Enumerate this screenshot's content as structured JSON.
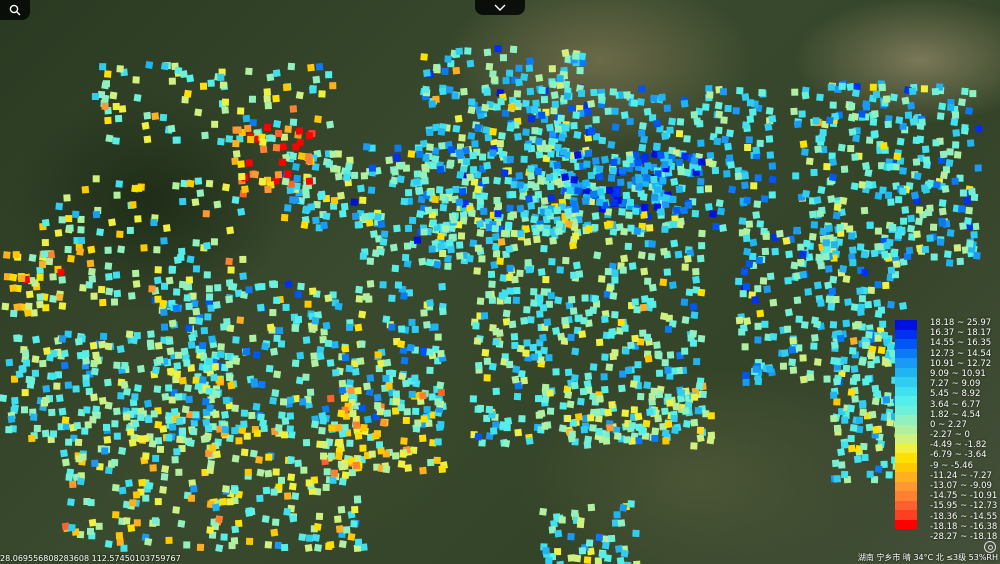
{
  "toolbar": {
    "search_icon": "search-icon",
    "collapse_icon": "chevron-down-icon"
  },
  "legend": {
    "colors": [
      "#0010e0",
      "#0030f0",
      "#0055f5",
      "#0a7af5",
      "#1a9af5",
      "#20b4f0",
      "#30cdf0",
      "#40e0f0",
      "#55eee8",
      "#70f0d8",
      "#90f0c0",
      "#b0f0a0",
      "#d0f080",
      "#f0f040",
      "#ffe000",
      "#ffc800",
      "#ffb020",
      "#ff9830",
      "#ff8030",
      "#ff6030",
      "#ff4020",
      "#ff0000"
    ],
    "labels": [
      "18.18 ~ 25.97",
      "16.37 ~ 18.17",
      "14.55 ~ 16.35",
      "12.73 ~ 14.54",
      "10.91 ~ 12.72",
      "9.09 ~ 10.91",
      "7.27 ~ 9.09",
      "5.45 ~ 8.92",
      "3.64 ~ 6.77",
      "1.82 ~ 4.54",
      "0 ~ 2.27",
      "-2.27 ~ 0",
      "-4.49 ~ -1.82",
      "-6.79 ~ -3.64",
      "-9 ~ -5.46",
      "-11.24 ~ -7.27",
      "-13.07 ~ -9.09",
      "-14.75 ~ -10.91",
      "-15.95 ~ -12.73",
      "-18.36 ~ -14.55",
      "-18.18 ~ -16.38",
      "-28.27 ~ -18.18"
    ]
  },
  "footer": {
    "coordinates": "28.0695568082836​08 112.57450103759767",
    "weather": "湖南 宁乡市 晴 34°C 北 ≤3级 53%RH",
    "compass_icon": "compass-icon"
  }
}
